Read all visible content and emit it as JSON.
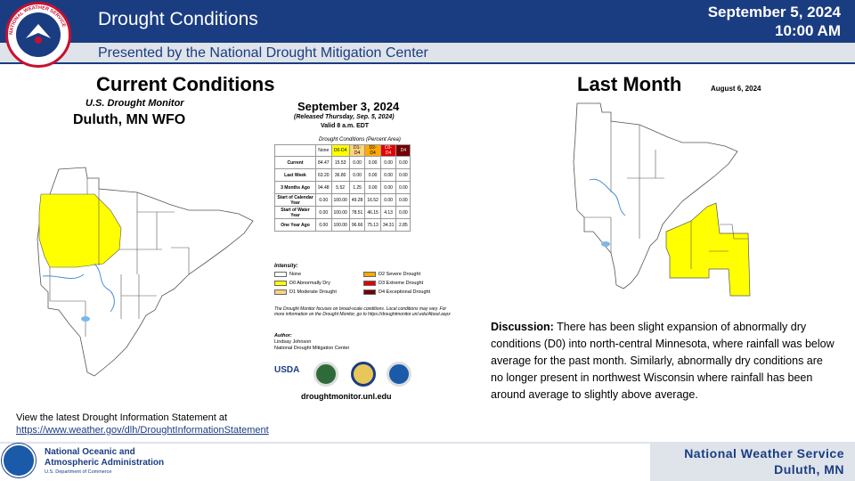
{
  "header": {
    "title": "Drought Conditions",
    "date": "September 5, 2024",
    "time": "10:00 AM",
    "subtitle": "Presented by the National Drought Mitigation Center",
    "logo_text": "NATIONAL WEATHER SERVICE"
  },
  "current": {
    "heading": "Current Conditions",
    "monitor_title": "U.S. Drought Monitor",
    "region": "Duluth, MN WFO",
    "map_date": "September 3, 2024",
    "released": "(Released Thursday, Sep. 5, 2024)",
    "valid": "Valid 8 a.m. EDT",
    "table_title": "Drought Conditions (Percent Area)",
    "table_headers": [
      "None",
      "D0-D4",
      "D1-D4",
      "D2-D4",
      "D3-D4",
      "D4"
    ],
    "table_rows": [
      {
        "label": "Current",
        "values": [
          "84.47",
          "15.53",
          "0.00",
          "0.00",
          "0.00",
          "0.00"
        ]
      },
      {
        "label": "Last Week",
        "values": [
          "63.20",
          "36.80",
          "0.00",
          "0.00",
          "0.00",
          "0.00"
        ]
      },
      {
        "label": "3 Months Ago",
        "values": [
          "94.48",
          "5.52",
          "1.25",
          "0.00",
          "0.00",
          "0.00"
        ]
      },
      {
        "label": "Start of Calendar Year",
        "values": [
          "0.00",
          "100.00",
          "49.28",
          "16.52",
          "0.00",
          "0.00"
        ]
      },
      {
        "label": "Start of Water Year",
        "values": [
          "0.00",
          "100.00",
          "78.51",
          "46.15",
          "4.13",
          "0.00"
        ]
      },
      {
        "label": "One Year Ago",
        "values": [
          "0.00",
          "100.00",
          "96.66",
          "75.13",
          "34.31",
          "2.85"
        ]
      }
    ],
    "intensity_label": "Intensity:",
    "legend": [
      {
        "label": "None",
        "color": "#ffffff"
      },
      {
        "label": "D0 Abnormally Dry",
        "color": "#ffff00"
      },
      {
        "label": "D1 Moderate Drought",
        "color": "#fcd37f"
      },
      {
        "label": "D2 Severe Drought",
        "color": "#ffaa00"
      },
      {
        "label": "D3 Extreme Drought",
        "color": "#e60000"
      },
      {
        "label": "D4 Exceptional Drought",
        "color": "#730000"
      }
    ],
    "note": "The Drought Monitor focuses on broad-scale conditions. Local conditions may vary. For more information on the Drought Monitor, go to https://droughtmonitor.unl.edu/About.aspx",
    "author_label": "Author:",
    "author_name": "Lindsay Johnson",
    "author_org": "National Drought Mitigation Center",
    "usda": "USDA",
    "url": "droughtmonitor.unl.edu"
  },
  "last_month": {
    "heading": "Last Month",
    "date": "August 6, 2024"
  },
  "discussion": {
    "label": "Discussion:",
    "text": " There has been slight expansion of abnormally dry conditions (D0) into north-central Minnesota, where rainfall was below average for the past month. Similarly, abnormally dry conditions are no longer present in northwest Wisconsin where rainfall has been around average to slightly above average."
  },
  "link": {
    "prefix": "View the latest Drought Information Statement at",
    "url": "https://www.weather.gov/dlh/DroughtInformationStatement"
  },
  "footer": {
    "noaa_line1": "National Oceanic and",
    "noaa_line2": "Atmospheric Administration",
    "noaa_sub": "U.S. Department of Commerce",
    "nws_line1": "National  Weather  Service",
    "nws_line2": "Duluth,  MN"
  },
  "colors": {
    "header": "#1a3d82",
    "subheader": "#dfe3ea",
    "d0": "#ffff00"
  }
}
